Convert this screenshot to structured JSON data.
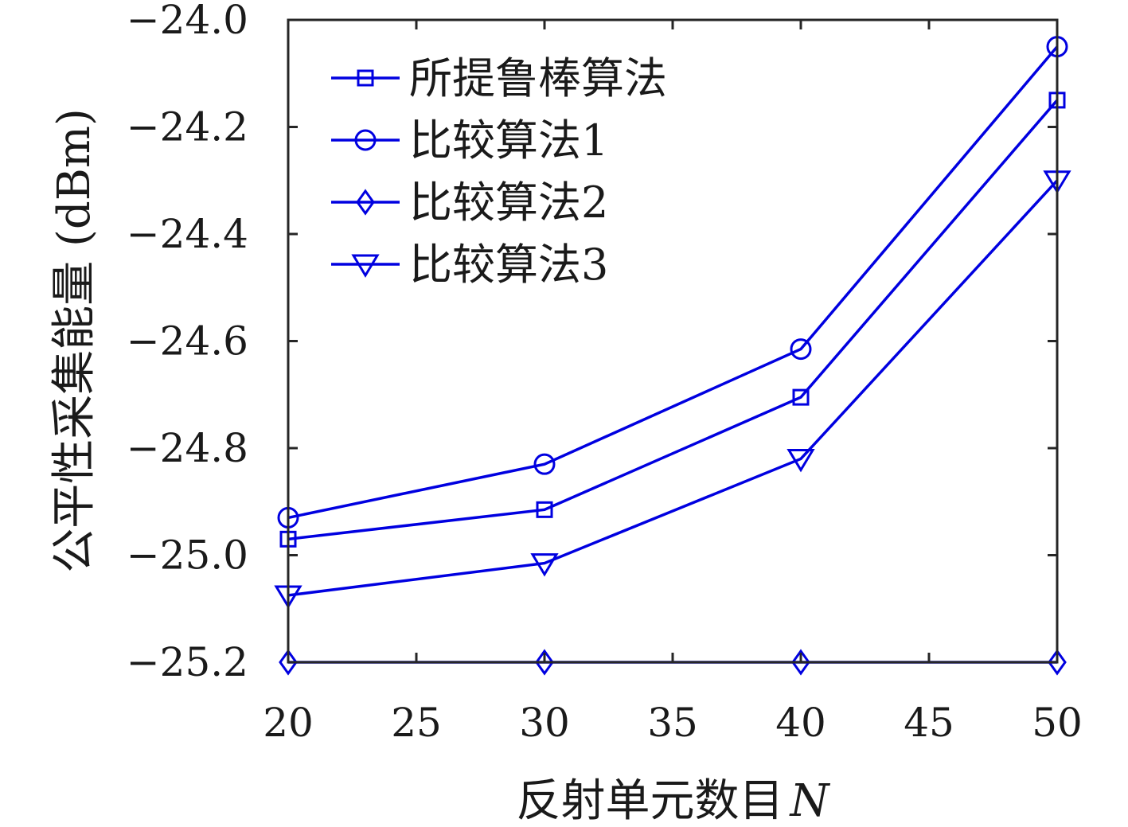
{
  "chart_data": {
    "type": "line",
    "xlabel": "反射单元数目",
    "xlabel_var": "N",
    "ylabel": "公平性采集能量 (dBm)",
    "x": [
      20,
      30,
      40,
      50
    ],
    "xlim": [
      20,
      50
    ],
    "ylim": [
      -25.2,
      -24.0
    ],
    "xticks": [
      "20",
      "25",
      "30",
      "35",
      "40",
      "45",
      "50"
    ],
    "xtick_values": [
      20,
      25,
      30,
      35,
      40,
      45,
      50
    ],
    "yticks": [
      "−24.0",
      "−24.2",
      "−24.4",
      "−24.6",
      "−24.8",
      "−25.0",
      "−25.2"
    ],
    "ytick_values": [
      -24.0,
      -24.2,
      -24.4,
      -24.6,
      -24.8,
      -25.0,
      -25.2
    ],
    "grid": false,
    "legend_position": "top-left",
    "line_color": "#0000e0",
    "series": [
      {
        "name": "所提鲁棒算法",
        "marker": "square",
        "values": [
          -24.97,
          -24.915,
          -24.705,
          -24.15
        ]
      },
      {
        "name": "比较算法1",
        "marker": "circle",
        "values": [
          -24.93,
          -24.83,
          -24.615,
          -24.05
        ]
      },
      {
        "name": "比较算法2",
        "marker": "diamond",
        "values": [
          -25.2,
          -25.2,
          -25.2,
          -25.2
        ]
      },
      {
        "name": "比较算法3",
        "marker": "triangle-down",
        "values": [
          -25.075,
          -25.015,
          -24.82,
          -24.3
        ]
      }
    ]
  }
}
